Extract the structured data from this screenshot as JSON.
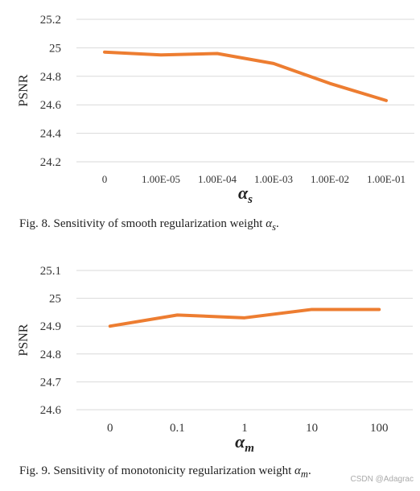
{
  "chart_data": [
    {
      "type": "line",
      "title": "",
      "ylabel": "PSNR",
      "xlabel": "α_s",
      "categories": [
        "0",
        "1.00E-05",
        "1.00E-04",
        "1.00E-03",
        "1.00E-02",
        "1.00E-01"
      ],
      "values": [
        24.97,
        24.95,
        24.96,
        24.89,
        24.75,
        24.63
      ],
      "ylim": [
        24.2,
        25.2
      ],
      "yticks": [
        "24.2",
        "24.4",
        "24.6",
        "24.8",
        "25",
        "25.2"
      ],
      "grid": true,
      "color": "#ED7D31"
    },
    {
      "type": "line",
      "title": "",
      "ylabel": "PSNR",
      "xlabel": "α_m",
      "categories": [
        "0",
        "0.1",
        "1",
        "10",
        "100"
      ],
      "values": [
        24.9,
        24.94,
        24.93,
        24.96,
        24.96
      ],
      "ylim": [
        24.6,
        25.1
      ],
      "yticks": [
        "24.6",
        "24.7",
        "24.8",
        "24.9",
        "25",
        "25.1"
      ],
      "grid": true,
      "color": "#ED7D31"
    }
  ],
  "captions": {
    "fig8_prefix": "Fig. 8.  Sensitivity of smooth regularization weight ",
    "fig8_symbol": "α",
    "fig8_sub": "s",
    "fig9_prefix": "Fig. 9.  Sensitivity of monotonicity regularization weight ",
    "fig9_symbol": "α",
    "fig9_sub": "m"
  },
  "watermark": "CSDN @Adagrac"
}
